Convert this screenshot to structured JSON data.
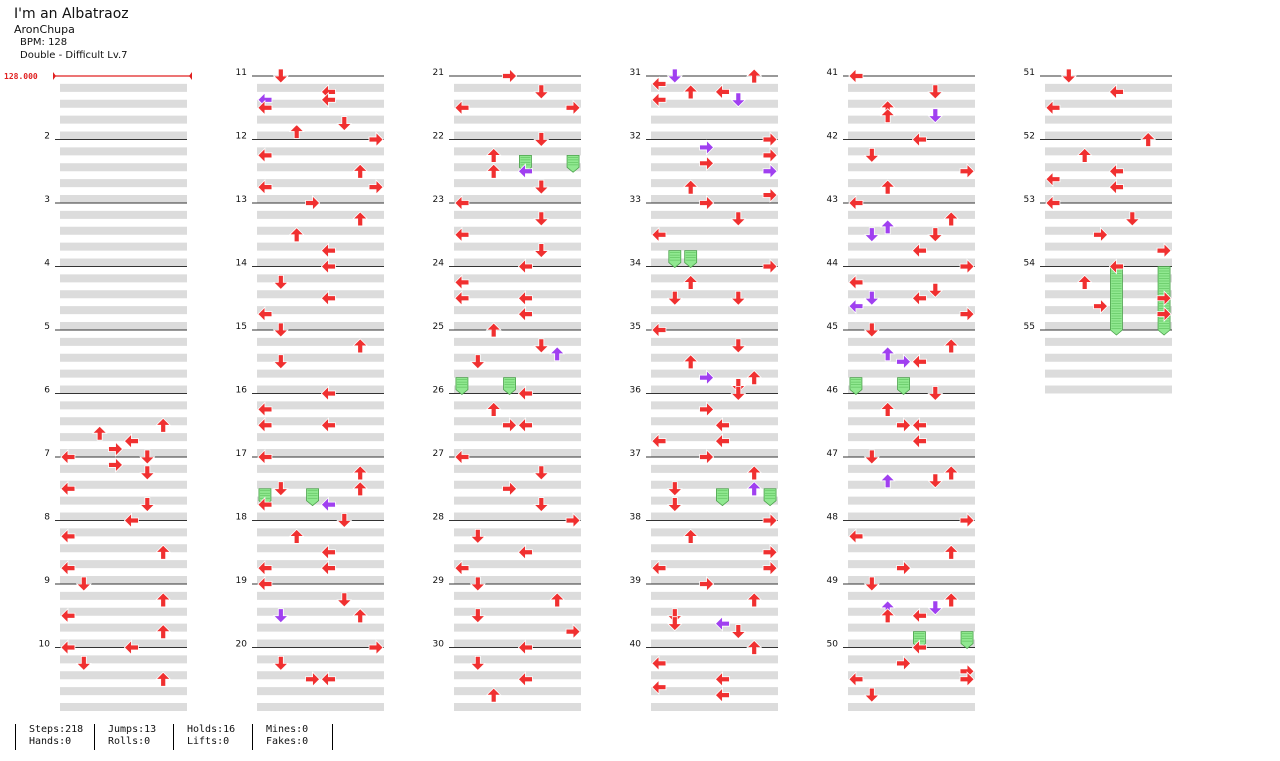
{
  "song": {
    "title": "I'm an Albatraoz",
    "artist": "AronChupa",
    "bpm_text": "BPM: 128",
    "chart_text": "Double - Difficult Lv.7",
    "bpm_marker": "128.000"
  },
  "measure_count": 55,
  "measures": [
    [],
    [],
    [],
    [],
    [],
    [
      [
        12,
        "ul"
      ],
      [
        14,
        "ur"
      ],
      [
        8,
        "u"
      ],
      [
        18,
        "ur"
      ],
      [
        16,
        "d"
      ],
      [
        10,
        "u"
      ]
    ],
    [
      [
        0,
        "l"
      ],
      [
        4,
        "d"
      ],
      [
        8,
        "l"
      ],
      [
        12,
        "d"
      ]
    ],
    [
      [
        0,
        "l"
      ],
      [
        4,
        "ul"
      ],
      [
        8,
        "u"
      ],
      [
        12,
        "ul"
      ]
    ],
    [
      [
        0,
        "d"
      ],
      [
        4,
        "u"
      ],
      [
        8,
        "ul"
      ],
      [
        12,
        "u"
      ],
      [
        16,
        "ul"
      ]
    ],
    [
      [
        0,
        "ul"
      ],
      [
        4,
        "d"
      ],
      [
        8,
        "u"
      ]
    ],
    [
      [
        0,
        "d"
      ],
      [
        4,
        "ul"
      ],
      [
        6,
        "ul",
        "p"
      ],
      [
        6,
        "l"
      ],
      [
        8,
        "ul"
      ],
      [
        12,
        "d"
      ],
      [
        14,
        "u"
      ],
      [
        16,
        "ur"
      ]
    ],
    [
      [
        0,
        "ur"
      ],
      [
        4,
        "ul"
      ],
      [
        8,
        "u"
      ],
      [
        12,
        "l"
      ],
      [
        12,
        "ur"
      ]
    ],
    [
      [
        0,
        "ur"
      ],
      [
        4,
        "u"
      ],
      [
        8,
        "u"
      ],
      [
        12,
        "ul"
      ]
    ],
    [
      [
        0,
        "l"
      ],
      [
        4,
        "d"
      ],
      [
        8,
        "ul"
      ],
      [
        12,
        "ul"
      ]
    ],
    [
      [
        0,
        "d"
      ],
      [
        4,
        "u"
      ],
      [
        8,
        "d"
      ]
    ],
    [
      [
        0,
        "ul"
      ],
      [
        4,
        "ul"
      ],
      [
        8,
        "ul"
      ],
      [
        8,
        "l"
      ]
    ],
    [
      [
        0,
        "ul"
      ],
      [
        4,
        "u"
      ],
      [
        8,
        "d"
      ],
      [
        8,
        "u"
      ],
      [
        12,
        "ul"
      ],
      [
        12,
        "ul",
        "p"
      ]
    ],
    [
      [
        0,
        "d"
      ],
      [
        4,
        "u"
      ],
      [
        8,
        "ul"
      ],
      [
        12,
        "ul"
      ],
      [
        12,
        "l"
      ]
    ],
    [
      [
        0,
        "ul"
      ],
      [
        4,
        "d"
      ],
      [
        8,
        "d"
      ],
      [
        8,
        "u"
      ],
      [
        8,
        "d",
        "p"
      ],
      [
        8,
        "u"
      ]
    ],
    [
      [
        0,
        "ur"
      ],
      [
        4,
        "d"
      ],
      [
        8,
        "l"
      ],
      [
        8,
        "ur"
      ]
    ],
    [
      [
        0,
        "ur"
      ],
      [
        4,
        "d"
      ],
      [
        8,
        "l"
      ],
      [
        8,
        "ur"
      ]
    ],
    [
      [
        0,
        "d"
      ],
      [
        4,
        "u"
      ],
      [
        8,
        "ul",
        "p"
      ],
      [
        8,
        "u"
      ],
      [
        12,
        "d"
      ]
    ],
    [
      [
        0,
        "l"
      ],
      [
        4,
        "d"
      ],
      [
        8,
        "l"
      ],
      [
        12,
        "d"
      ]
    ],
    [
      [
        0,
        "ul"
      ],
      [
        4,
        "ul"
      ],
      [
        8,
        "l"
      ],
      [
        8,
        "ul"
      ],
      [
        12,
        "ul"
      ]
    ],
    [
      [
        0,
        "u"
      ],
      [
        4,
        "d"
      ],
      [
        8,
        "d"
      ],
      [
        6,
        "u",
        "p"
      ]
    ],
    [
      [
        0,
        "l"
      ],
      [
        4,
        "u"
      ],
      [
        8,
        "ul"
      ],
      [
        8,
        "ur"
      ]
    ],
    [
      [
        0,
        "l"
      ],
      [
        4,
        "d"
      ],
      [
        8,
        "ur"
      ],
      [
        12,
        "d"
      ]
    ],
    [
      [
        0,
        "ur"
      ],
      [
        4,
        "d"
      ],
      [
        8,
        "ul"
      ],
      [
        12,
        "ul"
      ]
    ],
    [
      [
        0,
        "d"
      ],
      [
        4,
        "u"
      ],
      [
        8,
        "d"
      ],
      [
        12,
        "ur"
      ]
    ],
    [
      [
        0,
        "ul"
      ],
      [
        4,
        "d"
      ],
      [
        8,
        "ul"
      ],
      [
        12,
        "u"
      ]
    ],
    [
      [
        0,
        "d",
        "p"
      ],
      [
        0,
        "u"
      ],
      [
        2,
        "ul"
      ],
      [
        4,
        "l"
      ],
      [
        4,
        "u"
      ],
      [
        6,
        "d",
        "p"
      ],
      [
        6,
        "ul"
      ]
    ],
    [
      [
        0,
        "ur"
      ],
      [
        2,
        "ur",
        "p"
      ],
      [
        4,
        "ur"
      ],
      [
        6,
        "ur"
      ],
      [
        8,
        "ur",
        "p"
      ],
      [
        12,
        "u"
      ],
      [
        14,
        "ur"
      ]
    ],
    [
      [
        0,
        "ur"
      ],
      [
        4,
        "d"
      ],
      [
        8,
        "ul"
      ]
    ],
    [
      [
        0,
        "ur"
      ],
      [
        4,
        "u"
      ],
      [
        8,
        "d"
      ],
      [
        8,
        "d"
      ]
    ],
    [
      [
        0,
        "l"
      ],
      [
        4,
        "d"
      ],
      [
        8,
        "u"
      ],
      [
        12,
        "u"
      ],
      [
        12,
        "ur",
        "p"
      ],
      [
        14,
        "d"
      ]
    ],
    [
      [
        0,
        "d"
      ],
      [
        4,
        "ur"
      ],
      [
        8,
        "ul"
      ],
      [
        12,
        "ul"
      ],
      [
        12,
        "ul"
      ]
    ],
    [
      [
        0,
        "ur"
      ],
      [
        4,
        "u"
      ],
      [
        8,
        "d"
      ],
      [
        8,
        "u",
        "p"
      ],
      [
        12,
        "d"
      ]
    ],
    [
      [
        0,
        "ur"
      ],
      [
        4,
        "u"
      ],
      [
        8,
        "ur"
      ],
      [
        12,
        "ul"
      ],
      [
        12,
        "ur"
      ]
    ],
    [
      [
        0,
        "ur"
      ],
      [
        4,
        "u"
      ],
      [
        8,
        "d"
      ],
      [
        10,
        "ul",
        "p"
      ],
      [
        10,
        "d"
      ],
      [
        12,
        "d"
      ]
    ],
    [
      [
        0,
        "u"
      ],
      [
        4,
        "ul"
      ],
      [
        8,
        "ul"
      ],
      [
        10,
        "ul"
      ],
      [
        12,
        "ul"
      ]
    ],
    [
      [
        0,
        "ul"
      ],
      [
        4,
        "d"
      ],
      [
        8,
        "u"
      ],
      [
        10,
        "d",
        "p"
      ],
      [
        10,
        "u"
      ]
    ],
    [
      [
        0,
        "l"
      ],
      [
        4,
        "d"
      ],
      [
        8,
        "ur"
      ],
      [
        12,
        "u"
      ]
    ],
    [
      [
        0,
        "l"
      ],
      [
        4,
        "u"
      ],
      [
        6,
        "u",
        "p"
      ],
      [
        8,
        "d"
      ],
      [
        8,
        "d",
        "p"
      ],
      [
        12,
        "ul"
      ]
    ],
    [
      [
        0,
        "ur"
      ],
      [
        4,
        "ul"
      ],
      [
        6,
        "d"
      ],
      [
        8,
        "d",
        "p"
      ],
      [
        8,
        "ul"
      ],
      [
        10,
        "ul",
        "p"
      ],
      [
        12,
        "ur"
      ]
    ],
    [
      [
        0,
        "d"
      ],
      [
        4,
        "u"
      ],
      [
        6,
        "u",
        "p"
      ],
      [
        8,
        "ul"
      ],
      [
        8,
        "ur",
        "p"
      ],
      [
        8,
        "ul"
      ]
    ],
    [
      [
        0,
        "d"
      ],
      [
        4,
        "u"
      ],
      [
        8,
        "ul"
      ],
      [
        8,
        "ur"
      ],
      [
        12,
        "l"
      ]
    ],
    [
      [
        0,
        "d"
      ],
      [
        4,
        "u"
      ],
      [
        6,
        "u",
        "p"
      ],
      [
        6,
        "d"
      ]
    ],
    [
      [
        0,
        "ur"
      ],
      [
        4,
        "ul"
      ],
      [
        8,
        "u"
      ],
      [
        12,
        "ur"
      ]
    ],
    [
      [
        0,
        "d"
      ],
      [
        4,
        "u"
      ],
      [
        6,
        "u",
        "p"
      ],
      [
        6,
        "d",
        "p"
      ],
      [
        8,
        "u"
      ],
      [
        8,
        "ul"
      ]
    ],
    [
      [
        0,
        "ul"
      ],
      [
        4,
        "ur"
      ],
      [
        6,
        "ur"
      ],
      [
        8,
        "ul"
      ],
      [
        8,
        "ur"
      ],
      [
        12,
        "d"
      ]
    ],
    [
      [
        0,
        "d"
      ],
      [
        4,
        "ul"
      ],
      [
        8,
        "ul"
      ]
    ],
    [
      [
        0,
        "u"
      ],
      [
        4,
        "u"
      ],
      [
        8,
        "l"
      ],
      [
        10,
        "l"
      ],
      [
        12,
        "l"
      ]
    ],
    [
      [
        0,
        "l"
      ],
      [
        4,
        "d"
      ],
      [
        8,
        "ur"
      ],
      [
        12,
        "ur"
      ]
    ],
    [
      [
        0,
        "ul"
      ],
      [
        4,
        "u"
      ],
      [
        8,
        "ur"
      ],
      [
        10,
        "ur"
      ],
      [
        12,
        "ur"
      ]
    ],
    [],
    []
  ],
  "holds": [
    {
      "measure": 17,
      "beat": 8,
      "lane": 0,
      "beats": 3
    },
    {
      "measure": 17,
      "beat": 8,
      "lane": 3,
      "beats": 3
    },
    {
      "measure": 22,
      "beat": 4,
      "lane": 4,
      "beats": 3
    },
    {
      "measure": 22,
      "beat": 4,
      "lane": 7,
      "beats": 3
    },
    {
      "measure": 25,
      "beat": 12,
      "lane": 0,
      "beats": 3
    },
    {
      "measure": 25,
      "beat": 12,
      "lane": 3,
      "beats": 3
    },
    {
      "measure": 33,
      "beat": 12,
      "lane": 1,
      "beats": 3
    },
    {
      "measure": 33,
      "beat": 12,
      "lane": 2,
      "beats": 3
    },
    {
      "measure": 37,
      "beat": 8,
      "lane": 4,
      "beats": 3
    },
    {
      "measure": 37,
      "beat": 8,
      "lane": 7,
      "beats": 3
    },
    {
      "measure": 45,
      "beat": 12,
      "lane": 0,
      "beats": 3
    },
    {
      "measure": 45,
      "beat": 12,
      "lane": 3,
      "beats": 3
    },
    {
      "measure": 49,
      "beat": 12,
      "lane": 4,
      "beats": 3
    },
    {
      "measure": 49,
      "beat": 12,
      "lane": 7,
      "beats": 3
    },
    {
      "measure": 54,
      "beat": 0,
      "lane": 4,
      "beats": 16
    },
    {
      "measure": 54,
      "beat": 0,
      "lane": 7,
      "beats": 16
    }
  ],
  "stats": [
    {
      "top": "Steps:218",
      "bottom": "Hands:0"
    },
    {
      "top": "Jumps:13",
      "bottom": "Rolls:0"
    },
    {
      "top": "Holds:16",
      "bottom": "Lifts:0"
    },
    {
      "top": "Mines:0",
      "bottom": "Fakes:0"
    }
  ],
  "colors": {
    "note": "#f03030",
    "note_alt": "#a040f0",
    "hold": "#90e890",
    "stripe": "#dcdcdc",
    "bpm": "#e02020"
  }
}
